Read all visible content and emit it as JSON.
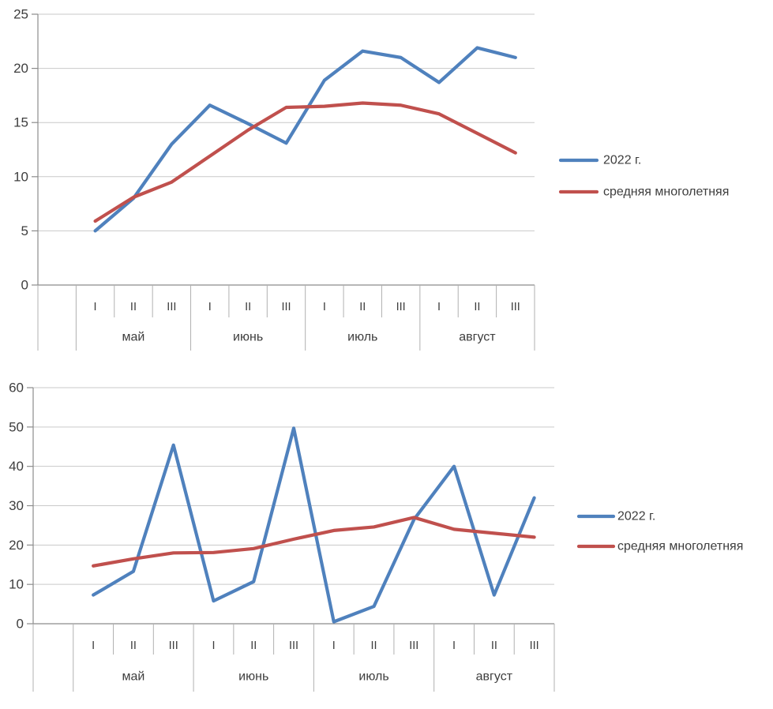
{
  "figure": {
    "background": "#FFFFFF"
  },
  "colors": {
    "series_2022": "#4F81BD",
    "series_longterm": "#C0504D",
    "gridline": "#C9C9C9",
    "axis": "#8C8C8C",
    "category_separator": "#B0B0B0",
    "text": "#3E3E3E"
  },
  "chart_data": [
    {
      "type": "line",
      "title": "",
      "xlabel": "",
      "ylabel": "",
      "grid": true,
      "legend_position": "right",
      "x_months": [
        "май",
        "июнь",
        "июль",
        "август"
      ],
      "x_decades": [
        "I",
        "II",
        "III"
      ],
      "categories": [
        "май I",
        "май II",
        "май III",
        "июнь I",
        "июнь II",
        "июнь III",
        "июль I",
        "июль II",
        "июль III",
        "август I",
        "август II",
        "август III"
      ],
      "ylim": [
        0,
        25
      ],
      "y_ticks": [
        0,
        5,
        10,
        15,
        20,
        25
      ],
      "series": [
        {
          "name": "2022 г.",
          "color": "#4F81BD",
          "values": [
            5.0,
            8.0,
            13.0,
            16.6,
            14.9,
            13.1,
            18.9,
            21.6,
            21.0,
            18.7,
            21.9,
            21.0
          ]
        },
        {
          "name": "средняя многолетняя",
          "color": "#C0504D",
          "values": [
            5.9,
            8.1,
            9.5,
            11.9,
            14.3,
            16.4,
            16.5,
            16.8,
            16.6,
            15.8,
            14.0,
            12.2
          ]
        }
      ]
    },
    {
      "type": "line",
      "title": "",
      "xlabel": "",
      "ylabel": "",
      "grid": true,
      "legend_position": "right",
      "x_months": [
        "май",
        "июнь",
        "июль",
        "август"
      ],
      "x_decades": [
        "I",
        "II",
        "III"
      ],
      "categories": [
        "май I",
        "май II",
        "май III",
        "июнь I",
        "июнь II",
        "июнь III",
        "июль I",
        "июль II",
        "июль III",
        "август I",
        "август II",
        "август III"
      ],
      "ylim": [
        0,
        60
      ],
      "y_ticks": [
        0,
        10,
        20,
        30,
        40,
        50,
        60
      ],
      "series": [
        {
          "name": "2022 г.",
          "color": "#4F81BD",
          "values": [
            7.3,
            13.3,
            45.4,
            5.8,
            10.7,
            49.7,
            0.5,
            4.4,
            26.5,
            40.0,
            7.3,
            32.0
          ]
        },
        {
          "name": "средняя многолетняя",
          "color": "#C0504D",
          "values": [
            14.7,
            16.5,
            18.0,
            18.1,
            19.1,
            21.5,
            23.7,
            24.6,
            27.0,
            24.0,
            23.0,
            22.0
          ]
        }
      ]
    }
  ]
}
